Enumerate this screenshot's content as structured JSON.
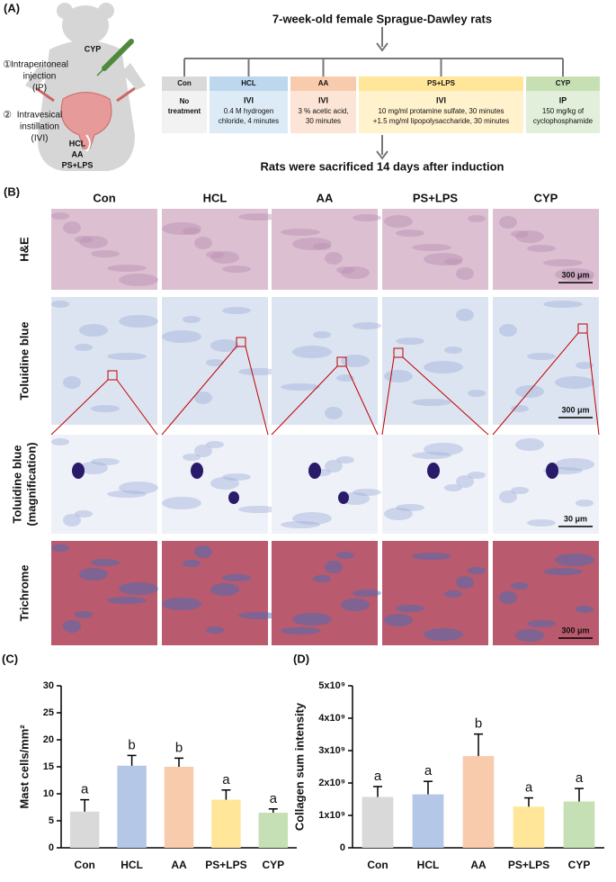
{
  "panel_a": {
    "label": "(A)",
    "header": "7-week-old female Sprague-Dawley rats",
    "footer": "Rats were sacrificed 14 days after induction",
    "routes": [
      {
        "marker": "①",
        "lines": [
          "Intraperitoneal",
          "injection",
          "(IP)"
        ]
      },
      {
        "marker": "②",
        "lines": [
          "Intravesical",
          "instillation",
          "(IVI)"
        ]
      }
    ],
    "rat_labels": {
      "injection": "CYP",
      "instillation": [
        "HCL",
        "AA",
        "PS+LPS"
      ]
    },
    "groups": [
      {
        "name": "Con",
        "desc": [
          "No",
          "treatment"
        ]
      },
      {
        "name": "HCL",
        "route": "IVI",
        "desc": [
          "0.4 M hydrogen",
          "chloride, 4 minutes"
        ]
      },
      {
        "name": "AA",
        "route": "IVI",
        "desc": [
          "3 % acetic acid,",
          "30 minutes"
        ]
      },
      {
        "name": "PS+LPS",
        "route": "IVI",
        "desc": [
          "10 mg/ml protamine sulfate, 30 minutes",
          "+1.5 mg/ml lipopolysaccharide, 30 minutes"
        ]
      },
      {
        "name": "CYP",
        "route": "IP",
        "desc": [
          "150 mg/kg of",
          "cyclophosphamide"
        ]
      }
    ]
  },
  "panel_b": {
    "label": "(B)",
    "columns": [
      "Con",
      "HCL",
      "AA",
      "PS+LPS",
      "CYP"
    ],
    "rows": [
      {
        "name": [
          "H&E"
        ],
        "scale": "300 μm"
      },
      {
        "name": [
          "Toluidine blue"
        ],
        "scale": "300 μm"
      },
      {
        "name": [
          "Toluidine blue",
          "(magnification)"
        ],
        "scale": "30 μm"
      },
      {
        "name": [
          "Trichrome"
        ],
        "scale": "300 μm"
      }
    ]
  },
  "chart_data": [
    {
      "type": "bar",
      "panel_label": "(C)",
      "y_label": "Mast cells/mm²",
      "categories": [
        "Con",
        "HCL",
        "AA",
        "PS+LPS",
        "CYP"
      ],
      "values": [
        6.7,
        15.2,
        15.0,
        8.9,
        6.5
      ],
      "errors": [
        2.2,
        1.9,
        1.6,
        1.8,
        0.7
      ],
      "annotations": [
        "a",
        "b",
        "b",
        "a",
        "a"
      ],
      "colors": [
        "#d9d9d9",
        "#b4c7e7",
        "#f8cbad",
        "#ffe699",
        "#c5e0b4"
      ],
      "ylim": [
        0,
        30
      ],
      "yticks": [
        0,
        5,
        10,
        15,
        20,
        25,
        30
      ]
    },
    {
      "type": "bar",
      "panel_label": "(D)",
      "y_label": "Collagen sum intensity",
      "categories": [
        "Con",
        "HCL",
        "AA",
        "PS+LPS",
        "CYP"
      ],
      "values": [
        1570000000,
        1650000000,
        2830000000,
        1270000000,
        1430000000
      ],
      "errors": [
        320000000,
        400000000,
        680000000,
        270000000,
        400000000
      ],
      "annotations": [
        "a",
        "a",
        "b",
        "a",
        "a"
      ],
      "colors": [
        "#d9d9d9",
        "#b4c7e7",
        "#f8cbad",
        "#ffe699",
        "#c5e0b4"
      ],
      "ylim": [
        0,
        5000000000
      ],
      "yticks": [
        0,
        {
          "value": 1000000000,
          "label": "1x10⁹"
        },
        {
          "value": 2000000000,
          "label": "2x10⁹"
        },
        {
          "value": 3000000000,
          "label": "3x10⁹"
        },
        {
          "value": 4000000000,
          "label": "4x10⁹"
        },
        {
          "value": 5000000000,
          "label": "5x10⁹"
        }
      ]
    }
  ]
}
